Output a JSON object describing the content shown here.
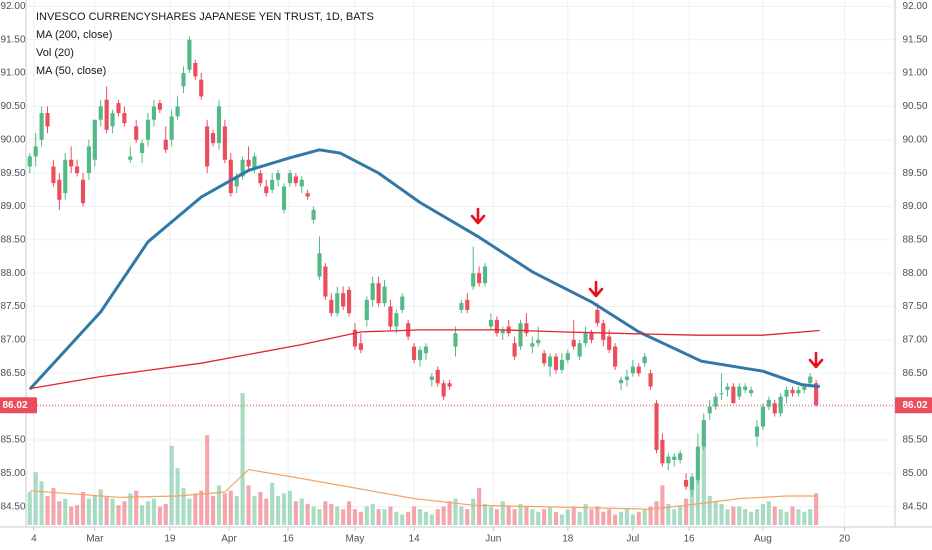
{
  "chart_data": {
    "type": "candlestick",
    "title": "INVESCO CURRENCYSHARES JAPANESE YEN TRUST, 1D, BATS",
    "indicators": [
      "MA (200, close)",
      "Vol (20)",
      "MA (50, close)"
    ],
    "up_color": "#53b987",
    "down_color": "#eb4d5c",
    "grid": true,
    "xlim": [
      -0.3,
      146
    ],
    "xticks": [
      {
        "value": 0.7,
        "label": "4"
      },
      {
        "value": 11,
        "label": "Mar"
      },
      {
        "value": 23.7,
        "label": "19"
      },
      {
        "value": 33.7,
        "label": "Apr"
      },
      {
        "value": 43.7,
        "label": "16"
      },
      {
        "value": 55,
        "label": "May"
      },
      {
        "value": 65,
        "label": "14"
      },
      {
        "value": 78.4,
        "label": "Jun"
      },
      {
        "value": 91,
        "label": "18"
      },
      {
        "value": 102,
        "label": "Jul"
      },
      {
        "value": 111.5,
        "label": "16"
      },
      {
        "value": 124,
        "label": "Aug"
      },
      {
        "value": 137.8,
        "label": "20"
      }
    ],
    "ylim": [
      84.3,
      92.05
    ],
    "yticks": [
      {
        "value": 84.5,
        "label": "84.50"
      },
      {
        "value": 85,
        "label": "85.00"
      },
      {
        "value": 85.5,
        "label": "85.50"
      },
      {
        "value": 86,
        "label": "86.00"
      },
      {
        "value": 86.5,
        "label": "86.50"
      },
      {
        "value": 87,
        "label": "87.00"
      },
      {
        "value": 87.5,
        "label": "87.50"
      },
      {
        "value": 88,
        "label": "88.00"
      },
      {
        "value": 88.5,
        "label": "88.50"
      },
      {
        "value": 89,
        "label": "89.00"
      },
      {
        "value": 89.5,
        "label": "89.50"
      },
      {
        "value": 90,
        "label": "90.00"
      },
      {
        "value": 90.5,
        "label": "90.50"
      },
      {
        "value": 91,
        "label": "91.00"
      },
      {
        "value": 91.5,
        "label": "91.50"
      },
      {
        "value": 92,
        "label": "92.00"
      }
    ],
    "last_price": {
      "value": 86.02,
      "label": "86.02"
    },
    "ohlc": [
      [
        89.6,
        89.8,
        89.5,
        89.75
      ],
      [
        89.75,
        90.1,
        89.6,
        89.9
      ],
      [
        90.0,
        90.5,
        89.9,
        90.4
      ],
      [
        90.4,
        90.5,
        90.1,
        90.2
      ],
      [
        89.6,
        89.7,
        89.3,
        89.35
      ],
      [
        89.4,
        89.5,
        88.95,
        89.1
      ],
      [
        89.2,
        89.8,
        89.1,
        89.7
      ],
      [
        89.7,
        89.9,
        89.5,
        89.6
      ],
      [
        89.6,
        89.7,
        89.45,
        89.5
      ],
      [
        89.4,
        89.5,
        89.0,
        89.05
      ],
      [
        89.5,
        90.0,
        89.4,
        89.9
      ],
      [
        89.7,
        90.3,
        89.6,
        90.3
      ],
      [
        90.3,
        90.6,
        90.2,
        90.5
      ],
      [
        90.6,
        90.8,
        90.1,
        90.15
      ],
      [
        90.2,
        90.45,
        90.1,
        90.4
      ],
      [
        90.55,
        90.6,
        90.35,
        90.4
      ],
      [
        90.4,
        90.5,
        90.2,
        90.25
      ],
      [
        89.7,
        89.9,
        89.65,
        89.75
      ],
      [
        90.2,
        90.3,
        89.95,
        90.0
      ],
      [
        89.8,
        90.0,
        89.65,
        89.95
      ],
      [
        90.0,
        90.4,
        89.9,
        90.3
      ],
      [
        90.3,
        90.6,
        90.2,
        90.5
      ],
      [
        90.55,
        90.6,
        90.4,
        90.45
      ],
      [
        90.0,
        90.2,
        89.8,
        89.85
      ],
      [
        90.0,
        90.45,
        89.9,
        90.35
      ],
      [
        90.35,
        90.65,
        90.3,
        90.5
      ],
      [
        90.8,
        91.1,
        90.7,
        91.0
      ],
      [
        91.05,
        91.55,
        91.0,
        91.5
      ],
      [
        91.15,
        91.2,
        90.9,
        90.95
      ],
      [
        90.9,
        91.0,
        90.6,
        90.65
      ],
      [
        90.2,
        90.3,
        89.5,
        89.6
      ],
      [
        90.1,
        90.15,
        89.9,
        89.95
      ],
      [
        89.95,
        90.6,
        89.85,
        90.5
      ],
      [
        90.2,
        90.3,
        89.65,
        89.7
      ],
      [
        89.7,
        89.8,
        89.15,
        89.2
      ],
      [
        89.3,
        89.5,
        89.2,
        89.45
      ],
      [
        89.45,
        89.75,
        89.4,
        89.7
      ],
      [
        89.7,
        89.9,
        89.55,
        89.6
      ],
      [
        89.55,
        89.8,
        89.5,
        89.75
      ],
      [
        89.5,
        89.55,
        89.3,
        89.35
      ],
      [
        89.3,
        89.4,
        89.15,
        89.2
      ],
      [
        89.25,
        89.5,
        89.2,
        89.4
      ],
      [
        89.4,
        89.55,
        89.3,
        89.5
      ],
      [
        88.95,
        89.35,
        88.9,
        89.3
      ],
      [
        89.35,
        89.55,
        89.3,
        89.5
      ],
      [
        89.45,
        89.5,
        89.3,
        89.35
      ],
      [
        89.3,
        89.45,
        89.2,
        89.4
      ],
      [
        89.2,
        89.25,
        89.1,
        89.15
      ],
      [
        88.8,
        89.0,
        88.75,
        88.95
      ],
      [
        87.95,
        88.55,
        87.9,
        88.3
      ],
      [
        88.1,
        88.15,
        87.6,
        87.65
      ],
      [
        87.6,
        87.7,
        87.35,
        87.4
      ],
      [
        87.4,
        87.8,
        87.35,
        87.7
      ],
      [
        87.7,
        87.8,
        87.45,
        87.5
      ],
      [
        87.75,
        87.8,
        87.35,
        87.4
      ],
      [
        87.15,
        87.25,
        86.85,
        86.9
      ],
      [
        86.95,
        87.1,
        86.8,
        86.85
      ],
      [
        87.3,
        87.65,
        87.2,
        87.6
      ],
      [
        87.6,
        87.95,
        87.5,
        87.85
      ],
      [
        87.85,
        87.95,
        87.5,
        87.55
      ],
      [
        87.55,
        87.9,
        87.5,
        87.8
      ],
      [
        87.5,
        87.6,
        87.15,
        87.2
      ],
      [
        87.2,
        87.45,
        87.1,
        87.4
      ],
      [
        87.45,
        87.7,
        87.4,
        87.65
      ],
      [
        87.25,
        87.3,
        87.0,
        87.05
      ],
      [
        86.9,
        86.95,
        86.65,
        86.7
      ],
      [
        86.7,
        86.9,
        86.6,
        86.85
      ],
      [
        86.8,
        86.95,
        86.7,
        86.9
      ],
      [
        86.4,
        86.5,
        86.3,
        86.45
      ],
      [
        86.55,
        86.6,
        86.3,
        86.35
      ],
      [
        86.35,
        86.4,
        86.1,
        86.15
      ],
      [
        86.35,
        86.4,
        86.25,
        86.3
      ],
      [
        86.9,
        87.2,
        86.75,
        87.1
      ],
      [
        87.45,
        87.6,
        87.4,
        87.55
      ],
      [
        87.6,
        87.7,
        87.4,
        87.45
      ],
      [
        87.8,
        88.4,
        87.75,
        88.0
      ],
      [
        88.0,
        88.1,
        87.8,
        87.85
      ],
      [
        87.85,
        88.15,
        87.8,
        88.1
      ],
      [
        87.2,
        87.4,
        87.15,
        87.3
      ],
      [
        87.3,
        87.35,
        87.05,
        87.1
      ],
      [
        87.1,
        87.2,
        87.0,
        87.15
      ],
      [
        87.2,
        87.3,
        87.05,
        87.1
      ],
      [
        86.95,
        87.05,
        86.7,
        86.75
      ],
      [
        86.9,
        87.3,
        86.85,
        87.25
      ],
      [
        87.25,
        87.4,
        87.05,
        87.1
      ],
      [
        86.9,
        87.05,
        86.8,
        86.95
      ],
      [
        86.95,
        87.2,
        86.9,
        87.0
      ],
      [
        86.8,
        86.85,
        86.6,
        86.65
      ],
      [
        86.6,
        86.8,
        86.45,
        86.75
      ],
      [
        86.75,
        86.8,
        86.5,
        86.55
      ],
      [
        86.55,
        86.8,
        86.5,
        86.7
      ],
      [
        86.7,
        86.85,
        86.65,
        86.8
      ],
      [
        87.0,
        87.3,
        86.85,
        86.9
      ],
      [
        86.75,
        87.0,
        86.7,
        86.95
      ],
      [
        86.95,
        87.2,
        86.9,
        87.1
      ],
      [
        87.1,
        87.15,
        86.95,
        87.0
      ],
      [
        87.45,
        87.55,
        87.2,
        87.25
      ],
      [
        87.25,
        87.3,
        86.9,
        87.0
      ],
      [
        87.05,
        87.15,
        86.8,
        86.85
      ],
      [
        86.9,
        86.95,
        86.55,
        86.6
      ],
      [
        86.35,
        86.45,
        86.25,
        86.4
      ],
      [
        86.4,
        86.55,
        86.3,
        86.45
      ],
      [
        86.5,
        86.7,
        86.45,
        86.6
      ],
      [
        86.6,
        86.65,
        86.45,
        86.5
      ],
      [
        86.65,
        86.8,
        86.6,
        86.75
      ],
      [
        86.5,
        86.55,
        86.25,
        86.3
      ],
      [
        86.05,
        86.1,
        85.3,
        85.35
      ],
      [
        85.5,
        85.6,
        85.1,
        85.15
      ],
      [
        85.15,
        85.3,
        85.05,
        85.25
      ],
      [
        85.2,
        85.3,
        85.1,
        85.25
      ],
      [
        85.2,
        85.35,
        85.15,
        85.3
      ],
      [
        84.9,
        85.0,
        84.75,
        84.8
      ],
      [
        84.75,
        85.0,
        84.65,
        84.95
      ],
      [
        84.9,
        85.6,
        84.85,
        85.4
      ],
      [
        85.4,
        85.9,
        85.35,
        85.8
      ],
      [
        85.9,
        86.1,
        85.8,
        86.0
      ],
      [
        86.0,
        86.2,
        85.95,
        86.15
      ],
      [
        86.2,
        86.5,
        86.1,
        86.2
      ],
      [
        86.25,
        86.35,
        86.15,
        86.3
      ],
      [
        86.3,
        86.35,
        86.05,
        86.05
      ],
      [
        86.15,
        86.35,
        86.1,
        86.3
      ],
      [
        86.25,
        86.35,
        86.2,
        86.3
      ],
      [
        86.2,
        86.3,
        86.15,
        86.25
      ],
      [
        85.55,
        85.8,
        85.4,
        85.7
      ],
      [
        85.7,
        86.05,
        85.65,
        86.0
      ],
      [
        86.0,
        86.15,
        85.95,
        86.1
      ],
      [
        86.05,
        86.1,
        85.85,
        85.9
      ],
      [
        85.9,
        86.2,
        85.85,
        86.15
      ],
      [
        86.15,
        86.3,
        86.05,
        86.25
      ],
      [
        86.25,
        86.3,
        86.15,
        86.2
      ],
      [
        86.2,
        86.3,
        86.15,
        86.25
      ],
      [
        86.25,
        86.35,
        86.2,
        86.3
      ],
      [
        86.35,
        86.5,
        86.3,
        86.45
      ],
      [
        86.35,
        86.4,
        86.0,
        86.02
      ]
    ],
    "volume_ylim": [
      0,
      100
    ],
    "volume": [
      25,
      40,
      33,
      22,
      28,
      18,
      20,
      14,
      15,
      25,
      20,
      22,
      27,
      22,
      20,
      15,
      18,
      24,
      26,
      15,
      18,
      20,
      14,
      16,
      60,
      43,
      28,
      20,
      24,
      26,
      68,
      22,
      30,
      24,
      26,
      22,
      100,
      30,
      22,
      25,
      20,
      32,
      22,
      24,
      26,
      18,
      20,
      16,
      14,
      12,
      18,
      16,
      14,
      12,
      18,
      12,
      10,
      14,
      16,
      12,
      12,
      14,
      10,
      8,
      10,
      14,
      12,
      10,
      8,
      12,
      14,
      18,
      20,
      14,
      12,
      20,
      28,
      16,
      14,
      12,
      18,
      14,
      12,
      16,
      14,
      12,
      10,
      12,
      14,
      10,
      8,
      12,
      14,
      10,
      16,
      12,
      14,
      10,
      12,
      8,
      10,
      12,
      8,
      10,
      12,
      14,
      18,
      30,
      16,
      12,
      14,
      20,
      30,
      40,
      60,
      22,
      18,
      16,
      12,
      14,
      14,
      12,
      10,
      12,
      16,
      18,
      14,
      12,
      10,
      14,
      12,
      10,
      12,
      24
    ],
    "lines": [
      {
        "name": "MA (50, close)",
        "color": "#3178a6",
        "width": 3,
        "axis": "price",
        "x": [
          0,
          12,
          20,
          29,
          37,
          44,
          49,
          52.5,
          59,
          66,
          76,
          85,
          95,
          103,
          113.6,
          124,
          130.5,
          133.6
        ],
        "values": [
          86.26,
          87.42,
          88.47,
          89.14,
          89.54,
          89.73,
          89.85,
          89.8,
          89.5,
          89.06,
          88.54,
          88.02,
          87.57,
          87.12,
          86.68,
          86.53,
          86.33,
          86.3
        ]
      },
      {
        "name": "MA (200, close)",
        "color": "#e0262f",
        "width": 1.3,
        "axis": "price",
        "x": [
          0,
          12,
          29,
          46,
          56,
          66,
          80,
          90,
          103,
          113,
          124,
          133.6
        ],
        "values": [
          86.27,
          86.45,
          86.65,
          86.93,
          87.12,
          87.15,
          87.15,
          87.12,
          87.09,
          87.07,
          87.07,
          87.14
        ]
      },
      {
        "name": "Vol (20)",
        "color": "#f4a460",
        "width": 1.2,
        "axis": "volume",
        "x": [
          0,
          15,
          25,
          33,
          37,
          45,
          55,
          65,
          75,
          85,
          95,
          105,
          113,
          120,
          128,
          133
        ],
        "values": [
          26,
          21,
          22,
          25,
          42,
          36,
          28,
          20,
          15,
          14,
          13,
          12,
          16,
          20,
          22,
          22
        ]
      }
    ]
  }
}
